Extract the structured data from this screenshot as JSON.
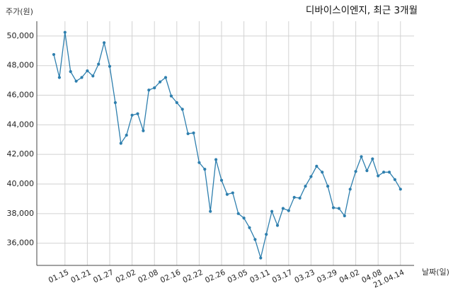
{
  "chart_data": {
    "type": "line",
    "title": "디바이스이엔지, 최근 3개월",
    "ylabel": "주가(원)",
    "xlabel": "날짜(일)",
    "ylim": [
      34500,
      51000
    ],
    "y_ticks": [
      "36,000",
      "38,000",
      "40,000",
      "42,000",
      "44,000",
      "46,000",
      "48,000",
      "50,000"
    ],
    "y_tick_values": [
      36000,
      38000,
      40000,
      42000,
      44000,
      46000,
      48000,
      50000
    ],
    "x_ticks": [
      "01.15",
      "01.21",
      "01.27",
      "02.02",
      "02.08",
      "02.16",
      "02.22",
      "02.26",
      "03.05",
      "03.11",
      "03.17",
      "03.23",
      "03.29",
      "04.02",
      "04.08",
      "21.04.14"
    ],
    "x_tick_index": [
      2,
      6,
      10,
      14,
      18,
      22,
      26,
      30,
      34,
      38,
      42,
      46,
      50,
      54,
      58,
      62
    ],
    "grid": true,
    "line_color": "#2e7fae",
    "series": [
      {
        "values": [
          48750,
          47200,
          50250,
          47600,
          46950,
          47200,
          47650,
          47300,
          48100,
          49550,
          47950,
          45500,
          42750,
          43300,
          44650,
          44750,
          43600,
          46350,
          46500,
          46900,
          47200,
          45950,
          45500,
          45050,
          43400,
          43450,
          41450,
          41000,
          38150,
          41650,
          40250,
          39300,
          39400,
          38000,
          37700,
          37050,
          36250,
          35000,
          36600,
          38150,
          37200,
          38350,
          38200,
          39100,
          39050,
          39850,
          40500,
          41200,
          40800,
          39850,
          38400,
          38350,
          37850,
          39650,
          40850,
          41850,
          40900,
          41700,
          40550,
          40800,
          40800,
          40300,
          39650
        ]
      }
    ]
  }
}
